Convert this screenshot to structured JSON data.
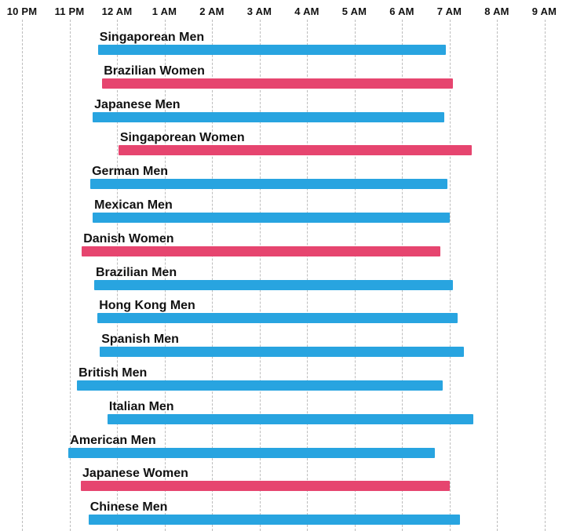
{
  "style": {
    "background_color": "#FFFFFF",
    "men_bar_color": "#28A4E0",
    "women_bar_color": "#E6456F",
    "gridline_color": "#BDBDBD",
    "text_color": "#111111"
  },
  "chart_data": {
    "type": "bar",
    "subtype": "horizontal-time-range",
    "title": "",
    "legend": "none",
    "grid": "dashed-vertical",
    "x_axis": {
      "tick_labels": [
        "10 PM",
        "11 PM",
        "12 AM",
        "1 AM",
        "2 AM",
        "3 AM",
        "4 AM",
        "5 AM",
        "6 AM",
        "7 AM",
        "8 AM",
        "9 AM"
      ],
      "tick_offsets_hours": [
        0,
        1,
        2,
        3,
        4,
        5,
        6,
        7,
        8,
        9,
        10,
        11
      ],
      "axis_start": "10 PM",
      "axis_end": "9 AM"
    },
    "categories": [
      "Singaporean Men",
      "Brazilian Women",
      "Japanese Men",
      "Singaporean Women",
      "German Men",
      "Mexican Men",
      "Danish Women",
      "Brazilian Men",
      "Hong Kong Men",
      "Spanish Men",
      "British Men",
      "Italian Men",
      "American Men",
      "Japanese Women",
      "Chinese Men"
    ],
    "series": [
      {
        "label": "Singaporean Men",
        "group": "men",
        "bedtime": "11:36 PM",
        "wake_time": "6:56 AM",
        "start_offset_hours": 1.6,
        "end_offset_hours": 8.93
      },
      {
        "label": "Brazilian Women",
        "group": "women",
        "bedtime": "11:41 PM",
        "wake_time": "7:04 AM",
        "start_offset_hours": 1.69,
        "end_offset_hours": 9.07
      },
      {
        "label": "Japanese Men",
        "group": "men",
        "bedtime": "11:29 PM",
        "wake_time": "6:53 AM",
        "start_offset_hours": 1.49,
        "end_offset_hours": 8.89
      },
      {
        "label": "Singaporean Women",
        "group": "women",
        "bedtime": "12:02 AM",
        "wake_time": "7:28 AM",
        "start_offset_hours": 2.03,
        "end_offset_hours": 9.47
      },
      {
        "label": "German Men",
        "group": "men",
        "bedtime": "11:26 PM",
        "wake_time": "6:58 AM",
        "start_offset_hours": 1.44,
        "end_offset_hours": 8.96
      },
      {
        "label": "Mexican Men",
        "group": "men",
        "bedtime": "11:29 PM",
        "wake_time": "7:01 AM",
        "start_offset_hours": 1.49,
        "end_offset_hours": 9.01
      },
      {
        "label": "Danish Women",
        "group": "women",
        "bedtime": "11:16 PM",
        "wake_time": "6:49 AM",
        "start_offset_hours": 1.26,
        "end_offset_hours": 8.81
      },
      {
        "label": "Brazilian Men",
        "group": "men",
        "bedtime": "11:31 PM",
        "wake_time": "7:04 AM",
        "start_offset_hours": 1.52,
        "end_offset_hours": 9.07
      },
      {
        "label": "Hong Kong Men",
        "group": "men",
        "bedtime": "11:35 PM",
        "wake_time": "7:10 AM",
        "start_offset_hours": 1.59,
        "end_offset_hours": 9.17
      },
      {
        "label": "Spanish Men",
        "group": "men",
        "bedtime": "11:38 PM",
        "wake_time": "7:19 AM",
        "start_offset_hours": 1.64,
        "end_offset_hours": 9.31
      },
      {
        "label": "British Men",
        "group": "men",
        "bedtime": "11:10 PM",
        "wake_time": "6:52 AM",
        "start_offset_hours": 1.16,
        "end_offset_hours": 8.86
      },
      {
        "label": "Italian Men",
        "group": "men",
        "bedtime": "11:48 PM",
        "wake_time": "7:30 AM",
        "start_offset_hours": 1.8,
        "end_offset_hours": 9.5
      },
      {
        "label": "American Men",
        "group": "men",
        "bedtime": "10:59 PM",
        "wake_time": "6:41 AM",
        "start_offset_hours": 0.98,
        "end_offset_hours": 8.69
      },
      {
        "label": "Japanese Women",
        "group": "women",
        "bedtime": "11:14 PM",
        "wake_time": "7:01 AM",
        "start_offset_hours": 1.24,
        "end_offset_hours": 9.01
      },
      {
        "label": "Chinese Men",
        "group": "men",
        "bedtime": "11:24 PM",
        "wake_time": "7:13 AM",
        "start_offset_hours": 1.4,
        "end_offset_hours": 9.22
      }
    ]
  }
}
